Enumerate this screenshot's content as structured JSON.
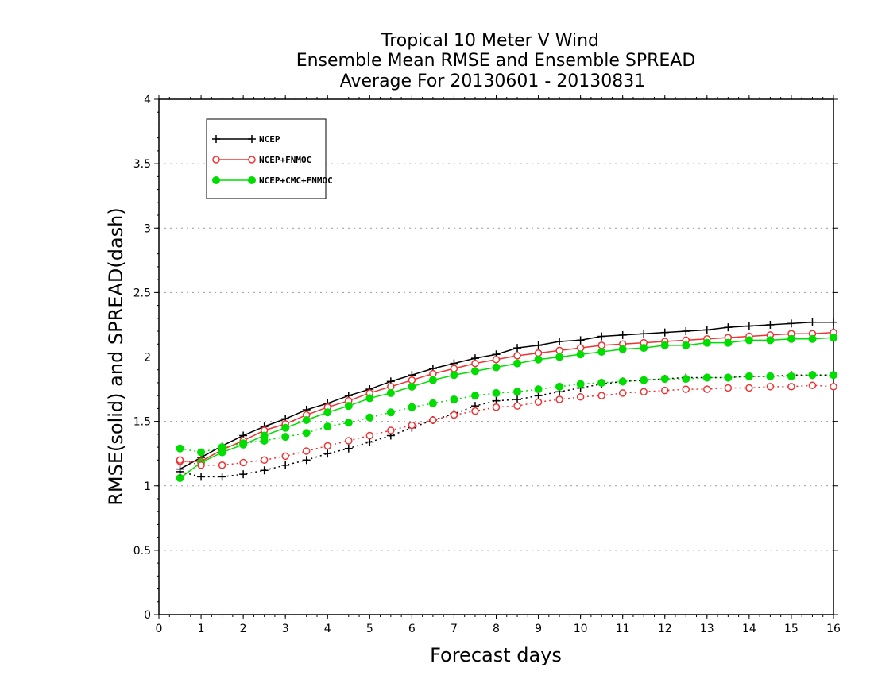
{
  "chart_data": {
    "type": "line",
    "title": [
      "Tropical 10 Meter V Wind",
      "Ensemble Mean RMSE and Ensemble SPREAD",
      "Average For 20130601 - 20130831"
    ],
    "xlabel": "Forecast days",
    "ylabel": "RMSE(solid) and SPREAD(dash)",
    "xlim": [
      0,
      16
    ],
    "ylim": [
      0,
      4
    ],
    "xticks": [
      "0",
      "1",
      "2",
      "3",
      "4",
      "5",
      "6",
      "7",
      "8",
      "9",
      "10",
      "11",
      "12",
      "13",
      "14",
      "15",
      "16"
    ],
    "yticks": [
      "0",
      "0.5",
      "1",
      "1.5",
      "2",
      "2.5",
      "3",
      "3.5",
      "4"
    ],
    "grid": true,
    "legend_position": "top-left",
    "x": [
      0.5,
      1,
      1.5,
      2,
      2.5,
      3,
      3.5,
      4,
      4.5,
      5,
      5.5,
      6,
      6.5,
      7,
      7.5,
      8,
      8.5,
      9,
      9.5,
      10,
      10.5,
      11,
      11.5,
      12,
      12.5,
      13,
      13.5,
      14,
      14.5,
      15,
      15.5,
      16
    ],
    "series": [
      {
        "name": "NCEP",
        "metric": "RMSE",
        "line": "solid",
        "marker": "plus",
        "color": "#000000",
        "values": [
          1.13,
          1.22,
          1.31,
          1.39,
          1.46,
          1.52,
          1.59,
          1.64,
          1.7,
          1.75,
          1.81,
          1.86,
          1.91,
          1.95,
          1.99,
          2.02,
          2.07,
          2.09,
          2.12,
          2.13,
          2.16,
          2.17,
          2.18,
          2.19,
          2.2,
          2.21,
          2.23,
          2.24,
          2.25,
          2.26,
          2.27,
          2.27
        ]
      },
      {
        "name": "NCEP+FNMOC",
        "metric": "RMSE",
        "line": "solid",
        "marker": "circle-open",
        "color": "#ee3333",
        "values": [
          1.19,
          1.19,
          1.28,
          1.35,
          1.43,
          1.48,
          1.55,
          1.61,
          1.66,
          1.72,
          1.77,
          1.82,
          1.87,
          1.91,
          1.95,
          1.98,
          2.01,
          2.03,
          2.05,
          2.07,
          2.09,
          2.1,
          2.11,
          2.12,
          2.13,
          2.14,
          2.15,
          2.16,
          2.17,
          2.18,
          2.18,
          2.19
        ]
      },
      {
        "name": "NCEP+CMC+FNMOC",
        "metric": "RMSE",
        "line": "solid",
        "marker": "circle-filled",
        "color": "#00dd00",
        "values": [
          1.06,
          1.18,
          1.26,
          1.32,
          1.39,
          1.45,
          1.51,
          1.57,
          1.62,
          1.68,
          1.72,
          1.77,
          1.82,
          1.86,
          1.89,
          1.92,
          1.95,
          1.98,
          2.0,
          2.02,
          2.04,
          2.06,
          2.07,
          2.09,
          2.09,
          2.11,
          2.11,
          2.13,
          2.13,
          2.14,
          2.14,
          2.15
        ]
      },
      {
        "name": "NCEP",
        "metric": "SPREAD",
        "line": "dash",
        "marker": "plus",
        "color": "#000000",
        "values": [
          1.11,
          1.07,
          1.07,
          1.09,
          1.12,
          1.16,
          1.2,
          1.25,
          1.29,
          1.34,
          1.39,
          1.45,
          1.51,
          1.56,
          1.62,
          1.66,
          1.67,
          1.7,
          1.73,
          1.76,
          1.79,
          1.81,
          1.82,
          1.83,
          1.84,
          1.84,
          1.84,
          1.85,
          1.85,
          1.86,
          1.86,
          1.86
        ]
      },
      {
        "name": "NCEP+FNMOC",
        "metric": "SPREAD",
        "line": "dash",
        "marker": "circle-open",
        "color": "#ee3333",
        "values": [
          1.2,
          1.16,
          1.16,
          1.18,
          1.2,
          1.23,
          1.27,
          1.31,
          1.35,
          1.39,
          1.43,
          1.47,
          1.51,
          1.55,
          1.58,
          1.61,
          1.62,
          1.65,
          1.67,
          1.69,
          1.7,
          1.72,
          1.73,
          1.74,
          1.75,
          1.75,
          1.76,
          1.76,
          1.77,
          1.77,
          1.78,
          1.77
        ]
      },
      {
        "name": "NCEP+CMC+FNMOC",
        "metric": "SPREAD",
        "line": "dash",
        "marker": "circle-filled",
        "color": "#00dd00",
        "values": [
          1.29,
          1.26,
          1.3,
          1.33,
          1.35,
          1.38,
          1.41,
          1.46,
          1.49,
          1.53,
          1.57,
          1.61,
          1.64,
          1.67,
          1.7,
          1.72,
          1.73,
          1.75,
          1.77,
          1.79,
          1.8,
          1.81,
          1.82,
          1.83,
          1.83,
          1.84,
          1.84,
          1.85,
          1.85,
          1.85,
          1.86,
          1.86
        ]
      }
    ],
    "legend": [
      {
        "label": "NCEP",
        "marker": "plus",
        "color": "#000000"
      },
      {
        "label": "NCEP+FNMOC",
        "marker": "circle-open",
        "color": "#ee3333"
      },
      {
        "label": "NCEP+CMC+FNMOC",
        "marker": "circle-filled",
        "color": "#00dd00"
      }
    ]
  }
}
